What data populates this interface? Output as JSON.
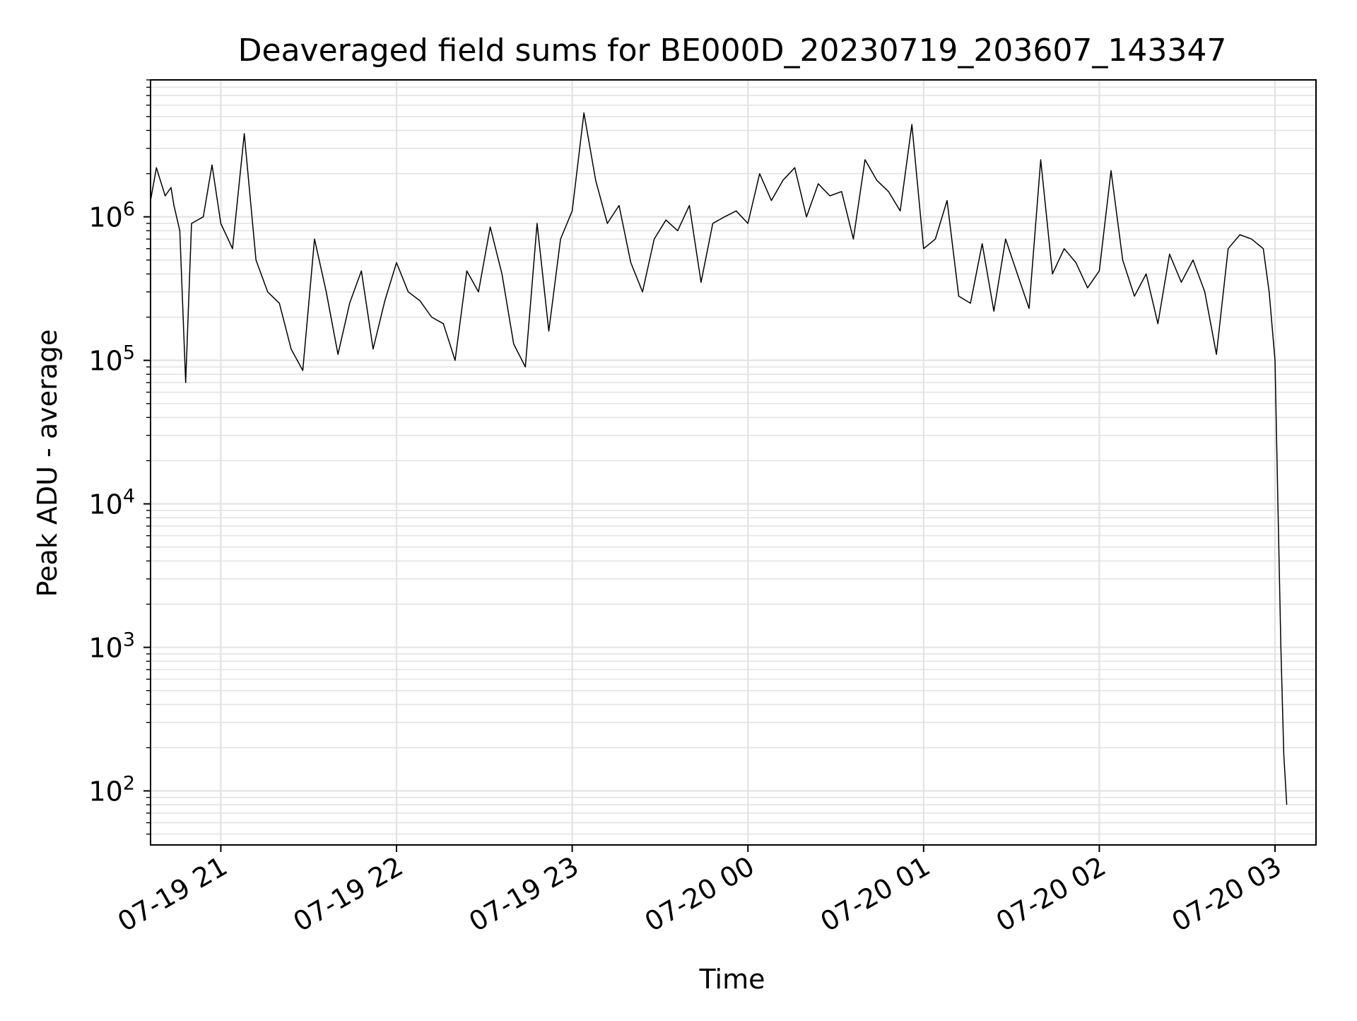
{
  "chart_data": {
    "type": "line",
    "title": "Deaveraged field sums for BE000D_20230719_203607_143347",
    "xlabel": "Time",
    "ylabel": "Peak ADU - average",
    "yscale": "log",
    "grid": true,
    "xlim": [
      "2023-07-19 20:36",
      "2023-07-20 03:14"
    ],
    "ylim": [
      42,
      9000000
    ],
    "xticks": [
      {
        "t": "2023-07-19 21:00",
        "label": "07-19 21"
      },
      {
        "t": "2023-07-19 22:00",
        "label": "07-19 22"
      },
      {
        "t": "2023-07-19 23:00",
        "label": "07-19 23"
      },
      {
        "t": "2023-07-20 00:00",
        "label": "07-20 00"
      },
      {
        "t": "2023-07-20 01:00",
        "label": "07-20 01"
      },
      {
        "t": "2023-07-20 02:00",
        "label": "07-20 02"
      },
      {
        "t": "2023-07-20 03:00",
        "label": "07-20 03"
      }
    ],
    "yticks": [
      {
        "value": 100,
        "base": "10",
        "exp": "2"
      },
      {
        "value": 1000,
        "base": "10",
        "exp": "3"
      },
      {
        "value": 10000,
        "base": "10",
        "exp": "4"
      },
      {
        "value": 100000,
        "base": "10",
        "exp": "5"
      },
      {
        "value": 1000000,
        "base": "10",
        "exp": "6"
      }
    ],
    "series": [
      {
        "color": "#000000",
        "x": [
          "2023-07-19 20:36",
          "2023-07-19 20:38",
          "2023-07-19 20:41",
          "2023-07-19 20:43",
          "2023-07-19 20:44",
          "2023-07-19 20:46",
          "2023-07-19 20:48",
          "2023-07-19 20:50",
          "2023-07-19 20:54",
          "2023-07-19 20:57",
          "2023-07-19 21:00",
          "2023-07-19 21:04",
          "2023-07-19 21:08",
          "2023-07-19 21:12",
          "2023-07-19 21:16",
          "2023-07-19 21:20",
          "2023-07-19 21:24",
          "2023-07-19 21:28",
          "2023-07-19 21:32",
          "2023-07-19 21:36",
          "2023-07-19 21:40",
          "2023-07-19 21:44",
          "2023-07-19 21:48",
          "2023-07-19 21:52",
          "2023-07-19 21:56",
          "2023-07-19 22:00",
          "2023-07-19 22:04",
          "2023-07-19 22:08",
          "2023-07-19 22:12",
          "2023-07-19 22:16",
          "2023-07-19 22:20",
          "2023-07-19 22:24",
          "2023-07-19 22:28",
          "2023-07-19 22:32",
          "2023-07-19 22:36",
          "2023-07-19 22:40",
          "2023-07-19 22:44",
          "2023-07-19 22:48",
          "2023-07-19 22:52",
          "2023-07-19 22:56",
          "2023-07-19 23:00",
          "2023-07-19 23:04",
          "2023-07-19 23:08",
          "2023-07-19 23:12",
          "2023-07-19 23:16",
          "2023-07-19 23:20",
          "2023-07-19 23:24",
          "2023-07-19 23:28",
          "2023-07-19 23:32",
          "2023-07-19 23:36",
          "2023-07-19 23:40",
          "2023-07-19 23:44",
          "2023-07-19 23:48",
          "2023-07-19 23:52",
          "2023-07-19 23:56",
          "2023-07-20 00:00",
          "2023-07-20 00:04",
          "2023-07-20 00:08",
          "2023-07-20 00:12",
          "2023-07-20 00:16",
          "2023-07-20 00:20",
          "2023-07-20 00:24",
          "2023-07-20 00:28",
          "2023-07-20 00:32",
          "2023-07-20 00:36",
          "2023-07-20 00:40",
          "2023-07-20 00:44",
          "2023-07-20 00:48",
          "2023-07-20 00:52",
          "2023-07-20 00:56",
          "2023-07-20 01:00",
          "2023-07-20 01:04",
          "2023-07-20 01:08",
          "2023-07-20 01:12",
          "2023-07-20 01:16",
          "2023-07-20 01:20",
          "2023-07-20 01:24",
          "2023-07-20 01:28",
          "2023-07-20 01:32",
          "2023-07-20 01:36",
          "2023-07-20 01:40",
          "2023-07-20 01:44",
          "2023-07-20 01:48",
          "2023-07-20 01:52",
          "2023-07-20 01:56",
          "2023-07-20 02:00",
          "2023-07-20 02:04",
          "2023-07-20 02:08",
          "2023-07-20 02:12",
          "2023-07-20 02:16",
          "2023-07-20 02:20",
          "2023-07-20 02:24",
          "2023-07-20 02:28",
          "2023-07-20 02:32",
          "2023-07-20 02:36",
          "2023-07-20 02:40",
          "2023-07-20 02:44",
          "2023-07-20 02:48",
          "2023-07-20 02:52",
          "2023-07-20 02:56",
          "2023-07-20 02:58",
          "2023-07-20 03:00",
          "2023-07-20 03:01",
          "2023-07-20 03:02",
          "2023-07-20 03:03",
          "2023-07-20 03:04"
        ],
        "y": [
          1300000,
          2200000,
          1400000,
          1600000,
          1200000,
          800000,
          70000,
          900000,
          1000000,
          2300000,
          900000,
          600000,
          3800000,
          500000,
          300000,
          250000,
          120000,
          85000,
          700000,
          300000,
          110000,
          250000,
          420000,
          120000,
          260000,
          480000,
          300000,
          260000,
          200000,
          180000,
          100000,
          420000,
          300000,
          850000,
          400000,
          130000,
          90000,
          900000,
          160000,
          700000,
          1100000,
          5300000,
          1800000,
          900000,
          1200000,
          480000,
          300000,
          700000,
          950000,
          800000,
          1200000,
          350000,
          900000,
          1000000,
          1100000,
          900000,
          2000000,
          1300000,
          1800000,
          2200000,
          1000000,
          1700000,
          1400000,
          1500000,
          700000,
          2500000,
          1800000,
          1500000,
          1100000,
          4400000,
          600000,
          700000,
          1300000,
          280000,
          250000,
          650000,
          220000,
          700000,
          400000,
          230000,
          2500000,
          400000,
          600000,
          480000,
          320000,
          420000,
          2100000,
          500000,
          280000,
          400000,
          180000,
          550000,
          350000,
          500000,
          300000,
          110000,
          600000,
          750000,
          700000,
          600000,
          300000,
          100000,
          10000,
          1000,
          180,
          80
        ]
      }
    ]
  }
}
